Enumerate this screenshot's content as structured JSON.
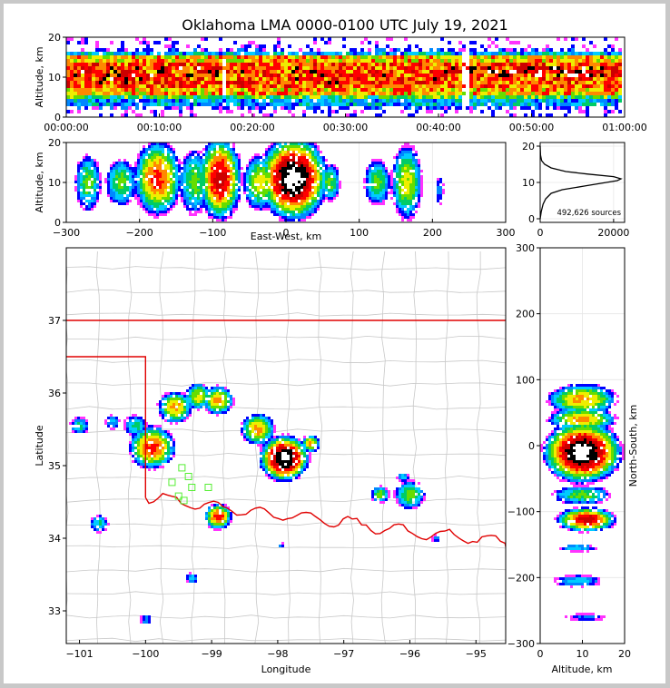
{
  "colors": {
    "density_scale": [
      "#d8d8d8",
      "#ff33ff",
      "#0000ff",
      "#0088ff",
      "#00ccff",
      "#00cc66",
      "#66dd00",
      "#eeee00",
      "#ff8800",
      "#ff0000",
      "#cc0000",
      "#000000",
      "#ffffff"
    ],
    "state_border": "#e00000",
    "county_lines": "#c8c8c8",
    "sensor_markers": "#55ee33"
  },
  "chart_data": [
    {
      "id": "time-height",
      "type": "heatmap",
      "title": "Oklahoma LMA 0000-0100 UTC July 19, 2021",
      "xlabel": "",
      "ylabel": "Altitude, km",
      "x_ticks": [
        "00:00:00",
        "00:10:00",
        "00:20:00",
        "00:30:00",
        "00:40:00",
        "00:50:00",
        "01:00:00"
      ],
      "xlim_minutes": [
        0,
        60
      ],
      "ylim": [
        0,
        20
      ],
      "y_ticks": [
        0,
        10,
        20
      ],
      "bands": [
        {
          "alt_lo": 0,
          "alt_hi": 20,
          "level": 1
        },
        {
          "alt_lo": 1.5,
          "alt_hi": 17.5,
          "level": 2
        },
        {
          "alt_lo": 3,
          "alt_hi": 16.5,
          "level": 4
        },
        {
          "alt_lo": 4.5,
          "alt_hi": 15.5,
          "level": 6
        },
        {
          "alt_lo": 5.5,
          "alt_hi": 15,
          "level": 8
        },
        {
          "alt_lo": 7,
          "alt_hi": 14,
          "level": 9
        }
      ],
      "cores": [
        {
          "t0": 0.5,
          "t1": 16.5,
          "alt_lo": 8.5,
          "alt_hi": 12.5,
          "level": 11
        },
        {
          "t0": 17.5,
          "t1": 42,
          "alt_lo": 8.5,
          "alt_hi": 12.5,
          "level": 10
        },
        {
          "t0": 43.5,
          "t1": 58,
          "alt_lo": 10,
          "alt_hi": 12.5,
          "level": 12
        }
      ],
      "gaps_minutes": [
        17,
        43
      ]
    },
    {
      "id": "ew-height",
      "type": "heatmap",
      "xlabel": "East-West, km",
      "ylabel": "Altitude, km",
      "xlim": [
        -300,
        300
      ],
      "x_ticks": [
        -300,
        -200,
        -100,
        0,
        100,
        200,
        300
      ],
      "ylim": [
        0,
        20
      ],
      "y_ticks": [
        0,
        10,
        20
      ],
      "cells": [
        {
          "x": -270,
          "z": 10,
          "rx": 15,
          "rz": 6,
          "peak": 6
        },
        {
          "x": -225,
          "z": 10,
          "rx": 18,
          "rz": 5,
          "peak": 6
        },
        {
          "x": -175,
          "z": 11,
          "rx": 28,
          "rz": 8,
          "peak": 9
        },
        {
          "x": -125,
          "z": 10,
          "rx": 18,
          "rz": 7,
          "peak": 6
        },
        {
          "x": -90,
          "z": 11,
          "rx": 25,
          "rz": 9,
          "peak": 10
        },
        {
          "x": -35,
          "z": 10,
          "rx": 20,
          "rz": 6,
          "peak": 7
        },
        {
          "x": 10,
          "z": 11,
          "rx": 40,
          "rz": 9,
          "peak": 12
        },
        {
          "x": 60,
          "z": 10,
          "rx": 12,
          "rz": 4,
          "peak": 6
        },
        {
          "x": 125,
          "z": 10,
          "rx": 15,
          "rz": 5,
          "peak": 6
        },
        {
          "x": 165,
          "z": 10,
          "rx": 18,
          "rz": 8,
          "peak": 7
        },
        {
          "x": 210,
          "z": 8,
          "rx": 5,
          "rz": 3,
          "peak": 3
        }
      ]
    },
    {
      "id": "altitude-histogram",
      "type": "line",
      "annotation": "492,626 sources",
      "xlim": [
        0,
        23000
      ],
      "x_ticks": [
        0,
        20000
      ],
      "ylim": [
        -1,
        21
      ],
      "y_ticks": [
        0,
        10,
        20
      ],
      "x": [
        0,
        300,
        800,
        1500,
        3000,
        6000,
        12000,
        18000,
        21000,
        22000,
        20000,
        13000,
        7000,
        3000,
        1200,
        400,
        100,
        0
      ],
      "y": [
        0,
        2,
        4,
        5.5,
        7,
        8,
        9,
        10,
        10.5,
        11,
        11.6,
        12.3,
        13,
        14,
        15,
        16,
        17.5,
        20
      ]
    },
    {
      "id": "plan-view",
      "type": "heatmap",
      "xlabel": "Longitude",
      "ylabel": "Latitude",
      "xlim": [
        -101.2,
        -94.55
      ],
      "x_ticks": [
        -101,
        -100,
        -99,
        -98,
        -97,
        -96,
        -95
      ],
      "ylim": [
        32.55,
        38.0
      ],
      "y_ticks": [
        33,
        34,
        35,
        36,
        37
      ],
      "cells": [
        {
          "lon": -101.0,
          "lat": 35.55,
          "r": 0.12,
          "peak": 5
        },
        {
          "lon": -100.5,
          "lat": 35.6,
          "r": 0.1,
          "peak": 4
        },
        {
          "lon": -100.15,
          "lat": 35.55,
          "r": 0.15,
          "peak": 5
        },
        {
          "lon": -99.9,
          "lat": 35.25,
          "r": 0.3,
          "peak": 9
        },
        {
          "lon": -99.55,
          "lat": 35.8,
          "r": 0.22,
          "peak": 8
        },
        {
          "lon": -99.2,
          "lat": 35.95,
          "r": 0.18,
          "peak": 7
        },
        {
          "lon": -98.9,
          "lat": 35.9,
          "r": 0.2,
          "peak": 8
        },
        {
          "lon": -98.3,
          "lat": 35.5,
          "r": 0.22,
          "peak": 8
        },
        {
          "lon": -97.9,
          "lat": 35.1,
          "r": 0.32,
          "peak": 12
        },
        {
          "lon": -97.5,
          "lat": 35.3,
          "r": 0.12,
          "peak": 8
        },
        {
          "lon": -98.9,
          "lat": 34.3,
          "r": 0.18,
          "peak": 9
        },
        {
          "lon": -100.7,
          "lat": 34.2,
          "r": 0.12,
          "peak": 5
        },
        {
          "lon": -96.45,
          "lat": 34.6,
          "r": 0.12,
          "peak": 6
        },
        {
          "lon": -96.0,
          "lat": 34.6,
          "r": 0.2,
          "peak": 6
        },
        {
          "lon": -96.1,
          "lat": 34.85,
          "r": 0.08,
          "peak": 4
        },
        {
          "lon": -99.3,
          "lat": 33.45,
          "r": 0.08,
          "peak": 4
        },
        {
          "lon": -100.0,
          "lat": 32.88,
          "r": 0.08,
          "peak": 3
        },
        {
          "lon": -95.6,
          "lat": 34.0,
          "r": 0.06,
          "peak": 3
        },
        {
          "lon": -97.95,
          "lat": 33.9,
          "r": 0.04,
          "peak": 3
        }
      ],
      "sensors": [
        [
          -99.45,
          34.97
        ],
        [
          -99.35,
          34.85
        ],
        [
          -99.6,
          34.77
        ],
        [
          -99.3,
          34.7
        ],
        [
          -99.05,
          34.7
        ],
        [
          -99.5,
          34.58
        ],
        [
          -99.42,
          34.52
        ]
      ]
    },
    {
      "id": "ns-height",
      "type": "heatmap",
      "xlabel": "Altitude, km",
      "ylabel": "North-South, km",
      "xlim": [
        0,
        20
      ],
      "x_ticks": [
        0,
        10,
        20
      ],
      "ylim": [
        -300,
        300
      ],
      "y_ticks": [
        -300,
        -200,
        -100,
        0,
        100,
        200,
        300
      ],
      "cells": [
        {
          "y": 70,
          "z": 10,
          "ry": 20,
          "rz": 7,
          "peak": 8
        },
        {
          "y": 40,
          "z": 10,
          "ry": 15,
          "rz": 7,
          "peak": 8
        },
        {
          "y": -10,
          "z": 10,
          "ry": 40,
          "rz": 8,
          "peak": 12
        },
        {
          "y": -75,
          "z": 10,
          "ry": 12,
          "rz": 6,
          "peak": 6
        },
        {
          "y": -112,
          "z": 11,
          "ry": 16,
          "rz": 6,
          "peak": 10
        },
        {
          "y": -155,
          "z": 9,
          "ry": 5,
          "rz": 4,
          "peak": 4
        },
        {
          "y": -205,
          "z": 9,
          "ry": 8,
          "rz": 5,
          "peak": 4
        },
        {
          "y": -260,
          "z": 11,
          "ry": 5,
          "rz": 4,
          "peak": 3
        }
      ]
    }
  ]
}
